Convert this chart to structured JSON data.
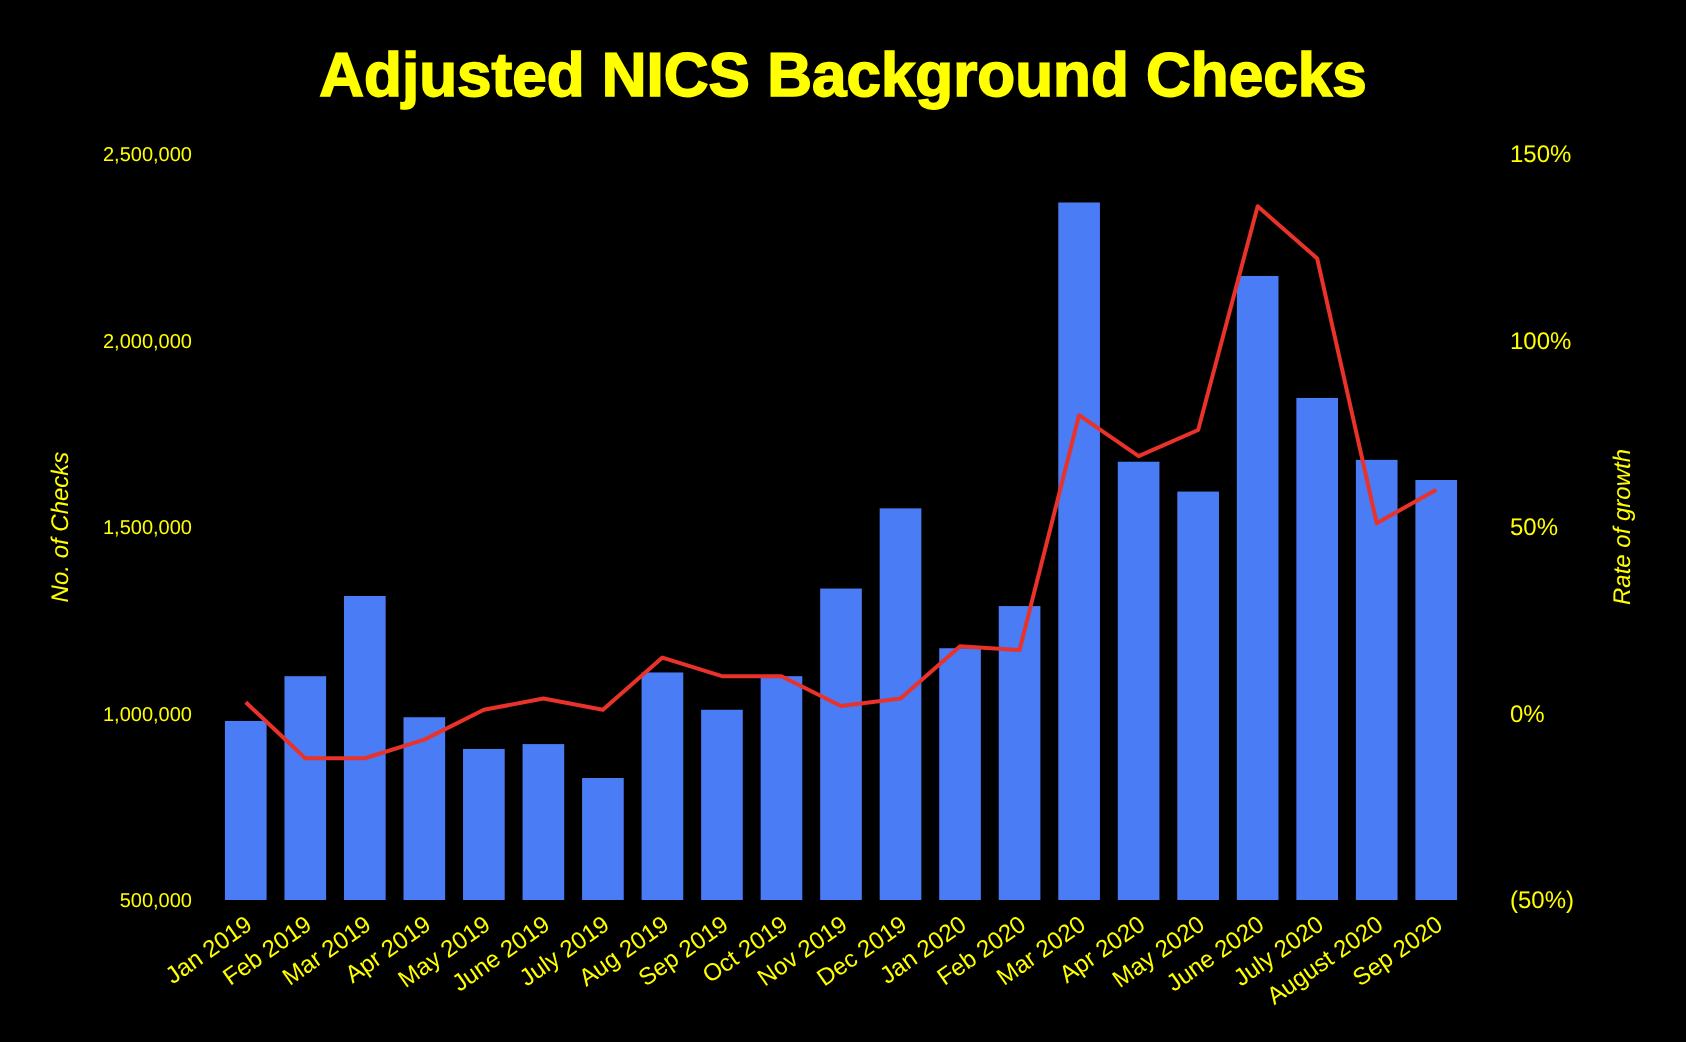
{
  "chart_data": {
    "type": "bar",
    "title": "Adjusted NICS Background Checks",
    "ylabel": "No. of Checks",
    "y2label": "Rate of growth",
    "categories": [
      "Jan 2019",
      "Feb 2019",
      "Mar 2019",
      "Apr 2019",
      "May 2019",
      "June 2019",
      "July 2019",
      "Aug 2019",
      "Sep 2019",
      "Oct 2019",
      "Nov 2019",
      "Dec 2019",
      "Jan 2020",
      "Feb 2020",
      "Mar 2020",
      "Apr 2020",
      "May 2020",
      "June 2020",
      "July 2020",
      "August 2020",
      "Sep 2020"
    ],
    "series": [
      {
        "color": "#4a7cf5",
        "values": [
          980000,
          1100000,
          1315000,
          990000,
          905000,
          918000,
          827000,
          1110000,
          1010000,
          1100000,
          1335000,
          1550000,
          1175000,
          1288000,
          2370000,
          1675000,
          1595000,
          2173000,
          1846000,
          1680000,
          1626000
        ]
      },
      {
        "type": "line",
        "axis": "y2",
        "color": "#e8322a",
        "values": [
          3,
          -12,
          -12,
          -7,
          1,
          4,
          1,
          15,
          10,
          10,
          2,
          4,
          18,
          17,
          80,
          69,
          76,
          136,
          122,
          51,
          60
        ]
      }
    ],
    "ylim": [
      500000,
      2500000
    ],
    "yticks": [
      {
        "value": 500000,
        "label": "500,000"
      },
      {
        "value": 1000000,
        "label": "1,000,000"
      },
      {
        "value": 1500000,
        "label": "1,500,000"
      },
      {
        "value": 2000000,
        "label": "2,000,000"
      },
      {
        "value": 2500000,
        "label": "2,500,000"
      }
    ],
    "y2lim": [
      -50,
      150
    ],
    "y2ticks": [
      {
        "value": -50,
        "label": "(50%)"
      },
      {
        "value": 0,
        "label": "0%"
      },
      {
        "value": 50,
        "label": "50%"
      },
      {
        "value": 100,
        "label": "100%"
      },
      {
        "value": 150,
        "label": "150%"
      }
    ],
    "grid": false,
    "marker": "none",
    "line_style": "solid"
  }
}
